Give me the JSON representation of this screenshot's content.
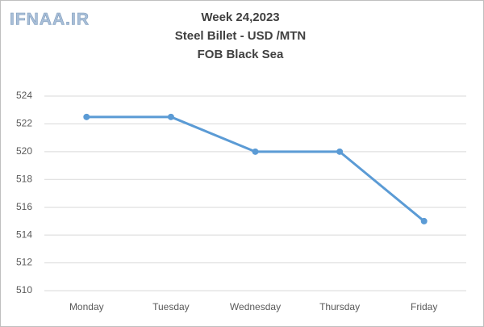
{
  "chart_data": {
    "type": "line",
    "watermark": "IFNAA.IR",
    "title": "Week 24,2023",
    "subtitle": [
      "Steel Billet - USD /MTN",
      "FOB Black Sea"
    ],
    "categories": [
      "Monday",
      "Tuesday",
      "Wednesday",
      "Thursday",
      "Friday"
    ],
    "values": [
      522.5,
      522.5,
      520,
      520,
      515
    ],
    "color": "#5b9bd5",
    "ylim": [
      510,
      524
    ],
    "yticks": [
      510,
      512,
      514,
      516,
      518,
      520,
      522,
      524
    ],
    "grid": true
  }
}
